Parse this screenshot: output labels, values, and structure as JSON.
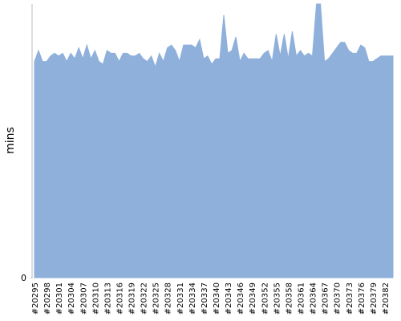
{
  "chart_data": {
    "type": "area",
    "y_label": "mins",
    "categories": [
      "#20295",
      null,
      null,
      "#20298",
      null,
      null,
      "#20301",
      null,
      null,
      "#20304",
      null,
      null,
      "#20307",
      null,
      null,
      "#20310",
      null,
      null,
      "#20313",
      null,
      null,
      "#20316",
      null,
      null,
      "#20319",
      null,
      null,
      "#20322",
      null,
      null,
      "#20325",
      null,
      null,
      "#20328",
      null,
      null,
      "#20331",
      null,
      null,
      "#20334",
      null,
      null,
      "#20337",
      null,
      null,
      "#20340",
      null,
      null,
      "#20343",
      null,
      null,
      "#20346",
      null,
      null,
      "#20349",
      null,
      null,
      "#20352",
      null,
      null,
      "#20355",
      null,
      null,
      "#20358",
      null,
      null,
      "#20361",
      null,
      null,
      "#20364",
      null,
      null,
      "#20367",
      null,
      null,
      "#20370",
      null,
      null,
      "#20373",
      null,
      null,
      "#20376",
      null,
      null,
      "#20379",
      null,
      null,
      "#20382",
      null,
      null
    ],
    "values": [
      79,
      83,
      79,
      79,
      81,
      82,
      81,
      82,
      79,
      82,
      80,
      84,
      80,
      85,
      80,
      83,
      79,
      78,
      83,
      82,
      82,
      79,
      82,
      82,
      81,
      81,
      82,
      80,
      79,
      81,
      77,
      82,
      79,
      84,
      85,
      83,
      79,
      85,
      85,
      85,
      84,
      87,
      80,
      81,
      78,
      80,
      80,
      96,
      82,
      83,
      88,
      79,
      82,
      80,
      80,
      80,
      80,
      82,
      83,
      79,
      89,
      81,
      89,
      80,
      90,
      81,
      83,
      81,
      82,
      81,
      100,
      100,
      79,
      80,
      82,
      84,
      86,
      86,
      83,
      82,
      82,
      85,
      84,
      79,
      79,
      80,
      81,
      81,
      81,
      81
    ],
    "color": "#8eb0db",
    "ylim": [
      0,
      100
    ],
    "yticks": [
      0
    ]
  }
}
